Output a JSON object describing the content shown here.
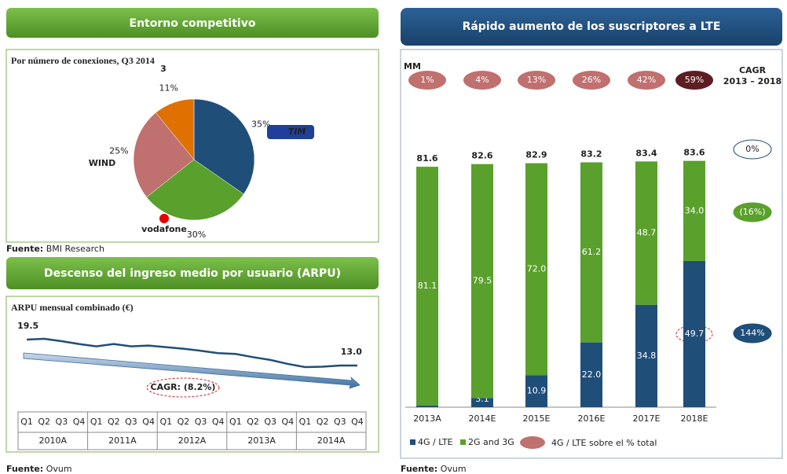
{
  "chart_data": [
    {
      "type": "pie",
      "title": "Entorno competitivo",
      "subtitle": "Por número de conexiones, Q3 2014",
      "categories": [
        "TIM",
        "vodafone",
        "WIND",
        "3"
      ],
      "values": [
        35,
        30,
        25,
        11
      ],
      "value_labels": [
        "35%",
        "30%",
        "25%",
        "11%"
      ],
      "colors": [
        "#1f4e79",
        "#5aa02c",
        "#c0706e",
        "#e07000"
      ],
      "source_label": "Fuente:",
      "source": "BMI Research"
    },
    {
      "type": "line",
      "title": "Descenso del ingreso medio por usuario (ARPU)",
      "subtitle": "ARPU mensual combinado (€)",
      "categories": [
        "Q1",
        "Q2",
        "Q3",
        "Q4",
        "Q1",
        "Q2",
        "Q3",
        "Q4",
        "Q1",
        "Q2",
        "Q3",
        "Q4",
        "Q1",
        "Q2",
        "Q3",
        "Q4",
        "Q1",
        "Q2",
        "Q3",
        "Q4"
      ],
      "groups": [
        "2010A",
        "2011A",
        "2012A",
        "2013A",
        "2014A"
      ],
      "values": [
        19.5,
        19.7,
        19.1,
        18.4,
        17.8,
        18.4,
        17.8,
        18.0,
        17.6,
        17.2,
        16.7,
        16.1,
        15.9,
        15.1,
        14.4,
        13.4,
        12.6,
        12.7,
        13.0,
        13.0
      ],
      "value_labels": [
        "19.5",
        null,
        null,
        null,
        null,
        null,
        null,
        null,
        null,
        null,
        null,
        null,
        null,
        null,
        null,
        null,
        null,
        null,
        null,
        "13.0"
      ],
      "color": "#1f4e79",
      "annotation": "CAGR: (8.2%)",
      "source_label": "Fuente:",
      "source": "Ovum"
    },
    {
      "type": "stacked_bar",
      "title": "Rápido aumento de los suscriptores a LTE",
      "unit": "MM",
      "categories": [
        "2013A",
        "2014E",
        "2015E",
        "2016E",
        "2017E",
        "2018E"
      ],
      "series": [
        {
          "name": "4G / LTE",
          "color": "#1f4e79",
          "values": [
            0.6,
            3.1,
            10.9,
            22.0,
            34.8,
            49.7
          ],
          "value_labels": [
            "0.6",
            "3.1",
            "10.9",
            "22.0",
            "34.8",
            "49.7"
          ]
        },
        {
          "name": "2G and 3G",
          "color": "#5aa02c",
          "values": [
            81.1,
            79.5,
            72.0,
            61.2,
            48.7,
            34.0
          ],
          "value_labels": [
            "81.1",
            "79.5",
            "72.0",
            "61.2",
            "48.7",
            "34.0"
          ]
        }
      ],
      "totals": [
        81.6,
        82.6,
        82.9,
        83.2,
        83.4,
        83.6
      ],
      "share_name": "4G / LTE sobre el % total",
      "share": [
        1,
        4,
        13,
        26,
        42,
        59
      ],
      "share_labels": [
        "1%",
        "4%",
        "13%",
        "26%",
        "42%",
        "59%"
      ],
      "share_colors": [
        "#c0706e",
        "#c0706e",
        "#c0706e",
        "#c0706e",
        "#c0706e",
        "#5c1e22"
      ],
      "cagr_title": "CAGR",
      "cagr_period": "2013 – 2018",
      "cagr": [
        0,
        -16,
        144
      ],
      "cagr_labels": [
        "0%",
        "(16%)",
        "144%"
      ],
      "source_label": "Fuente:",
      "source": "Ovum"
    }
  ]
}
